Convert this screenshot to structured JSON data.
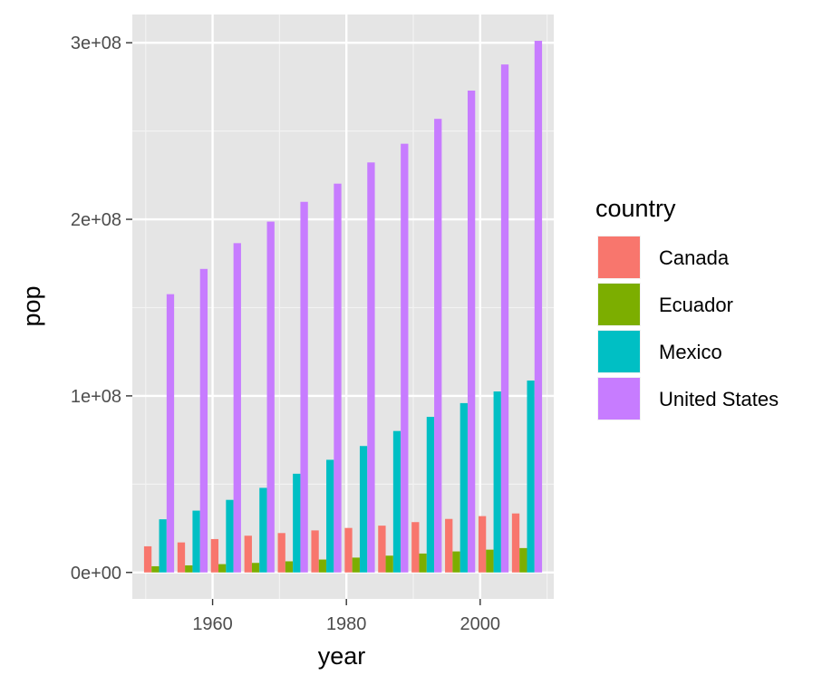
{
  "chart_data": {
    "type": "bar",
    "xlabel": "year",
    "ylabel": "pop",
    "x": [
      1952,
      1957,
      1962,
      1967,
      1972,
      1977,
      1982,
      1987,
      1992,
      1997,
      2002,
      2007
    ],
    "x_ticks": [
      1960,
      1980,
      2000
    ],
    "x_tick_labels": [
      "1960",
      "1980",
      "2000"
    ],
    "xlim": [
      1948,
      2011
    ],
    "y_ticks": [
      0,
      100000000,
      200000000,
      300000000
    ],
    "y_tick_labels": [
      "0e+00",
      "1e+08",
      "2e+08",
      "3e+08"
    ],
    "ylim": [
      -15000000,
      316000000
    ],
    "grid": true,
    "panel_background": "#e5e5e5",
    "legend": {
      "title": "country",
      "position": "right"
    },
    "series": [
      {
        "name": "Canada",
        "color": "#F8766D",
        "values": [
          14800000,
          17000000,
          18900000,
          20800000,
          22300000,
          23800000,
          25200000,
          26500000,
          28500000,
          30300000,
          31900000,
          33400000
        ]
      },
      {
        "name": "Ecuador",
        "color": "#7CAE00",
        "values": [
          3500000,
          4000000,
          4700000,
          5400000,
          6300000,
          7300000,
          8400000,
          9500000,
          10700000,
          11900000,
          12900000,
          13800000
        ]
      },
      {
        "name": "Mexico",
        "color": "#00BFC4",
        "values": [
          30100000,
          35000000,
          41100000,
          47900000,
          55900000,
          63800000,
          71600000,
          80100000,
          88100000,
          95900000,
          102500000,
          108700000
        ]
      },
      {
        "name": "United States",
        "color": "#C77CFF",
        "values": [
          157600000,
          171900000,
          186500000,
          198700000,
          209900000,
          220200000,
          232200000,
          242800000,
          256900000,
          272900000,
          287700000,
          301100000
        ]
      }
    ]
  }
}
